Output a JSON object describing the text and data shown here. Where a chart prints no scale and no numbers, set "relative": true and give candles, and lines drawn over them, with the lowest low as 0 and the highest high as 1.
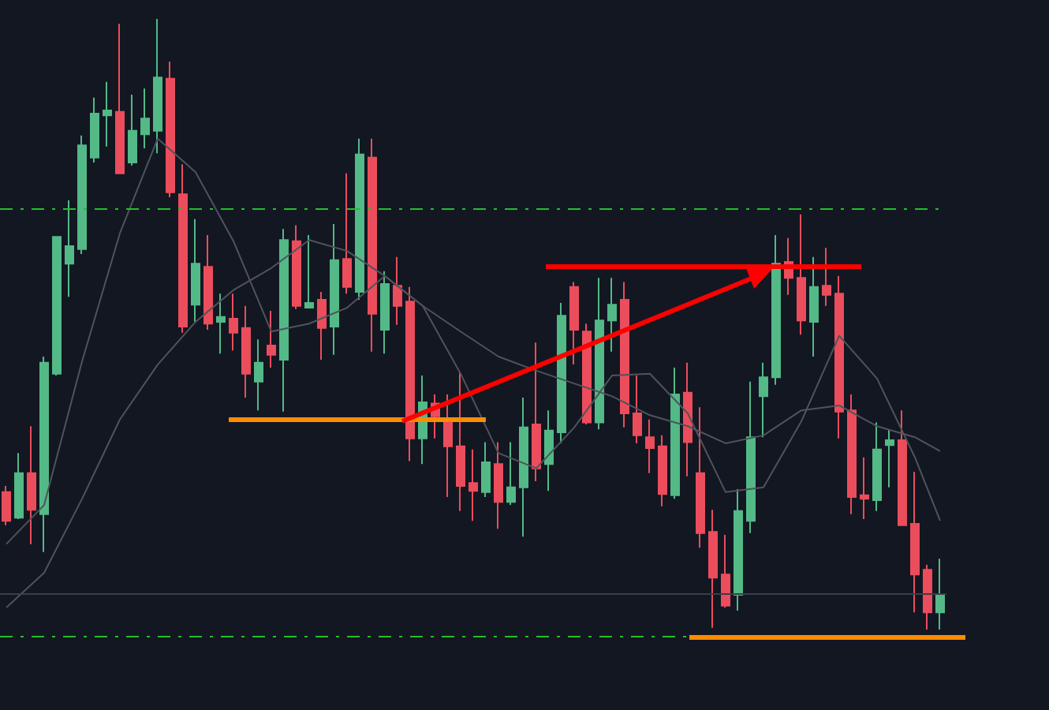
{
  "chart_data": {
    "type": "candlestick",
    "relative": true,
    "categories": [
      null,
      null,
      null,
      null,
      null,
      null,
      null,
      null,
      null,
      null,
      null,
      null,
      null,
      null,
      null,
      null,
      null,
      null,
      null,
      null,
      null,
      null,
      null,
      null,
      null,
      null,
      null,
      null,
      null,
      null,
      null,
      null,
      null,
      null,
      null,
      null,
      null,
      null,
      null,
      null,
      null,
      null,
      null,
      null,
      null,
      null,
      null,
      null,
      null,
      null,
      null,
      null,
      null,
      null,
      null,
      null,
      null,
      null,
      null,
      null,
      null,
      null,
      null,
      null,
      null,
      null,
      null,
      null,
      null,
      null,
      null,
      null,
      null,
      null,
      null
    ],
    "ohlc": [
      [
        0.225,
        0.235,
        0.171,
        0.178
      ],
      [
        0.183,
        0.289,
        0.181,
        0.256
      ],
      [
        0.256,
        0.333,
        0.14,
        0.196
      ],
      [
        0.189,
        0.447,
        0.127,
        0.437
      ],
      [
        0.419,
        0.643,
        0.416,
        0.643
      ],
      [
        0.599,
        0.703,
        0.545,
        0.628
      ],
      [
        0.623,
        0.809,
        0.615,
        0.793
      ],
      [
        0.773,
        0.871,
        0.765,
        0.845
      ],
      [
        0.842,
        0.897,
        0.791,
        0.85
      ],
      [
        0.848,
        0.992,
        0.747,
        0.747
      ],
      [
        0.765,
        0.876,
        0.76,
        0.817
      ],
      [
        0.811,
        0.886,
        0.788,
        0.837
      ],
      [
        0.817,
        1,
        0.78,
        0.904
      ],
      [
        0.902,
        0.93,
        0.708,
        0.716
      ],
      [
        0.713,
        0.762,
        0.486,
        0.496
      ],
      [
        0.532,
        0.672,
        0.504,
        0.599
      ],
      [
        0.594,
        0.646,
        0.491,
        0.501
      ],
      [
        0.504,
        0.55,
        0.452,
        0.512
      ],
      [
        0.509,
        0.55,
        0.457,
        0.486
      ],
      [
        0.494,
        0.53,
        0.38,
        0.419
      ],
      [
        0.406,
        0.475,
        0.359,
        0.437
      ],
      [
        0.465,
        0.522,
        0.429,
        0.45
      ],
      [
        0.442,
        0.656,
        0.357,
        0.638
      ],
      [
        0.636,
        0.662,
        0.525,
        0.53
      ],
      [
        0.527,
        0.646,
        0.527,
        0.535
      ],
      [
        0.54,
        0.553,
        0.442,
        0.494
      ],
      [
        0.496,
        0.664,
        0.45,
        0.605
      ],
      [
        0.607,
        0.747,
        0.55,
        0.561
      ],
      [
        0.553,
        0.804,
        0.54,
        0.778
      ],
      [
        0.773,
        0.804,
        0.455,
        0.517
      ],
      [
        0.491,
        0.587,
        0.452,
        0.566
      ],
      [
        0.563,
        0.61,
        0.499,
        0.53
      ],
      [
        0.537,
        0.561,
        0.276,
        0.313
      ],
      [
        0.313,
        0.416,
        0.271,
        0.372
      ],
      [
        0.37,
        0.385,
        0.313,
        0.349
      ],
      [
        0.339,
        0.385,
        0.217,
        0.3
      ],
      [
        0.3,
        0.421,
        0.194,
        0.235
      ],
      [
        0.24,
        0.295,
        0.178,
        0.227
      ],
      [
        0.225,
        0.307,
        0.217,
        0.274
      ],
      [
        0.271,
        0.307,
        0.165,
        0.209
      ],
      [
        0.209,
        0.307,
        0.204,
        0.233
      ],
      [
        0.233,
        0.38,
        0.152,
        0.331
      ],
      [
        0.336,
        0.47,
        0.243,
        0.264
      ],
      [
        0.271,
        0.359,
        0.227,
        0.326
      ],
      [
        0.323,
        0.535,
        0.305,
        0.514
      ],
      [
        0.561,
        0.569,
        0.434,
        0.491
      ],
      [
        0.488,
        0.501,
        0.336,
        0.339
      ],
      [
        0.339,
        0.576,
        0.328,
        0.506
      ],
      [
        0.506,
        0.576,
        0.455,
        0.532
      ],
      [
        0.54,
        0.569,
        0.331,
        0.354
      ],
      [
        0.354,
        0.416,
        0.305,
        0.318
      ],
      [
        0.315,
        0.344,
        0.256,
        0.297
      ],
      [
        0.3,
        0.318,
        0.202,
        0.222
      ],
      [
        0.22,
        0.429,
        0.214,
        0.385
      ],
      [
        0.388,
        0.437,
        0.251,
        0.307
      ],
      [
        0.256,
        0.364,
        0.134,
        0.158
      ],
      [
        0.16,
        0.196,
        0.003,
        0.085
      ],
      [
        0.09,
        0.155,
        0.036,
        0.039
      ],
      [
        0.057,
        0.23,
        0.031,
        0.194
      ],
      [
        0.178,
        0.406,
        0.158,
        0.315
      ],
      [
        0.382,
        0.437,
        0.315,
        0.413
      ],
      [
        0.413,
        0.646,
        0.401,
        0.599
      ],
      [
        0.602,
        0.641,
        0.548,
        0.576
      ],
      [
        0.576,
        0.68,
        0.483,
        0.506
      ],
      [
        0.504,
        0.61,
        0.447,
        0.561
      ],
      [
        0.563,
        0.625,
        0.53,
        0.548
      ],
      [
        0.55,
        0.579,
        0.313,
        0.357
      ],
      [
        0.359,
        0.385,
        0.189,
        0.217
      ],
      [
        0.22,
        0.282,
        0.181,
        0.214
      ],
      [
        0.212,
        0.339,
        0.194,
        0.295
      ],
      [
        0.302,
        0.328,
        0.233,
        0.31
      ],
      [
        0.31,
        0.359,
        0.171,
        0.171
      ],
      [
        0.173,
        0.258,
        0.028,
        0.09
      ],
      [
        0.098,
        0.106,
        0,
        0.028
      ],
      [
        0.028,
        0.116,
        0,
        0.057
      ]
    ],
    "colors": [
      "#eb4d5c",
      "#53b987",
      "#eb4d5c",
      "#53b987",
      "#53b987",
      "#53b987",
      "#53b987",
      "#53b987",
      "#53b987",
      "#eb4d5c",
      "#53b987",
      "#53b987",
      "#53b987",
      "#eb4d5c",
      "#eb4d5c",
      "#53b987",
      "#eb4d5c",
      "#53b987",
      "#eb4d5c",
      "#eb4d5c",
      "#53b987",
      "#eb4d5c",
      "#53b987",
      "#eb4d5c",
      "#53b987",
      "#eb4d5c",
      "#53b987",
      "#eb4d5c",
      "#53b987",
      "#eb4d5c",
      "#53b987",
      "#eb4d5c",
      "#eb4d5c",
      "#53b987",
      "#eb4d5c",
      "#eb4d5c",
      "#eb4d5c",
      "#eb4d5c",
      "#53b987",
      "#eb4d5c",
      "#53b987",
      "#53b987",
      "#eb4d5c",
      "#53b987",
      "#53b987",
      "#eb4d5c",
      "#eb4d5c",
      "#53b987",
      "#53b987",
      "#eb4d5c",
      "#eb4d5c",
      "#eb4d5c",
      "#eb4d5c",
      "#53b987",
      "#eb4d5c",
      "#eb4d5c",
      "#eb4d5c",
      "#eb4d5c",
      "#53b987",
      "#53b987",
      "#53b987",
      "#53b987",
      "#eb4d5c",
      "#eb4d5c",
      "#53b987",
      "#eb4d5c",
      "#eb4d5c",
      "#eb4d5c",
      "#eb4d5c",
      "#53b987",
      "#53b987",
      "#eb4d5c",
      "#eb4d5c",
      "#eb4d5c",
      "#53b987"
    ],
    "series": [
      {
        "type": "line",
        "color": "#50535c",
        "values": [
          0.14,
          null,
          null,
          0.204,
          null,
          null,
          0.439,
          null,
          null,
          0.649,
          null,
          null,
          0.804,
          null,
          null,
          0.749,
          null,
          null,
          0.636,
          null,
          null,
          0.488,
          null,
          null,
          0.501,
          null,
          null,
          0.527,
          null,
          null,
          0.579,
          null,
          null,
          0.53,
          null,
          null,
          0.419,
          null,
          null,
          0.289,
          null,
          null,
          0.264,
          null,
          null,
          0.331,
          null,
          null,
          0.416,
          null,
          null,
          0.419,
          null,
          null,
          0.354,
          null,
          null,
          0.225,
          null,
          null,
          0.233,
          null,
          null,
          0.341,
          null,
          null,
          0.481,
          null,
          null,
          0.411,
          null,
          null,
          0.282,
          null,
          0.178
        ]
      },
      {
        "type": "line",
        "color": "#50535c",
        "values": [
          0.036,
          null,
          null,
          0.093,
          null,
          null,
          0.214,
          null,
          null,
          0.344,
          null,
          null,
          0.434,
          null,
          null,
          0.504,
          null,
          null,
          0.556,
          null,
          null,
          0.592,
          null,
          null,
          0.638,
          null,
          null,
          0.62,
          null,
          null,
          0.579,
          null,
          null,
          0.53,
          null,
          null,
          0.488,
          null,
          null,
          0.447,
          null,
          null,
          0.424,
          null,
          null,
          0.403,
          null,
          null,
          0.382,
          null,
          null,
          0.351,
          null,
          null,
          0.333,
          null,
          null,
          0.305,
          null,
          null,
          0.318,
          null,
          null,
          0.359,
          null,
          null,
          0.367,
          null,
          null,
          0.333,
          null,
          null,
          0.315,
          null,
          0.292
        ]
      }
    ],
    "ref_lines": [
      {
        "axis": "y",
        "value": 0.689,
        "color": "#22c02a",
        "line_style": "dashed"
      },
      {
        "axis": "y",
        "value": -0.01,
        "color": "#22c02a",
        "line_style": "dashed"
      },
      {
        "axis": "y",
        "value": 0.057,
        "color": "#3a3e48",
        "line_style": "solid"
      }
    ]
  }
}
